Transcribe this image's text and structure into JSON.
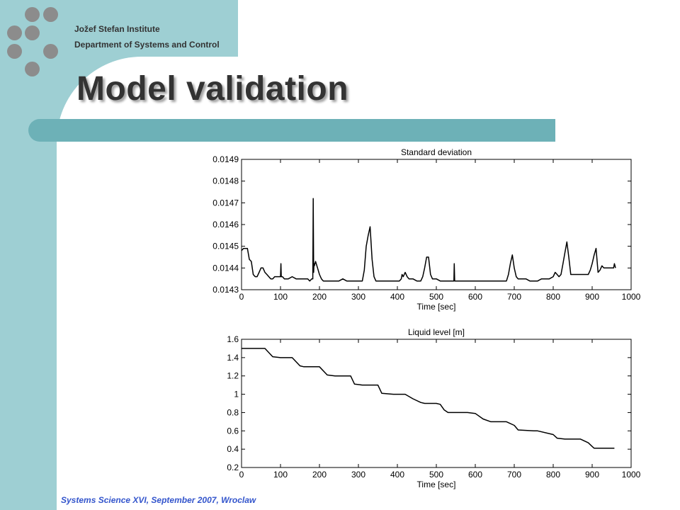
{
  "institute": {
    "name": "Jožef Stefan Institute",
    "department": "Department  of Systems and Control"
  },
  "slide": {
    "title": "Model validation",
    "footer": "Systems Science XVI, September 2007, Wroclaw"
  },
  "colors": {
    "sidebar": "#9ecfd3",
    "title_bar": "#6db1b7",
    "dots": "#8c8c8c",
    "footer_text": "#3355cc"
  },
  "chart_data": [
    {
      "type": "line",
      "title": "Standard deviation",
      "xlabel": "Time [sec]",
      "ylabel": "",
      "xlim": [
        0,
        1000
      ],
      "ylim": [
        0.0143,
        0.0149
      ],
      "xticks": [
        0,
        100,
        200,
        300,
        400,
        500,
        600,
        700,
        800,
        900,
        1000
      ],
      "yticks": [
        0.0143,
        0.0144,
        0.0145,
        0.0146,
        0.0147,
        0.0148,
        0.0149
      ],
      "ytick_labels": [
        "0.0143",
        "0.0144",
        "0.0145",
        "0.0146",
        "0.0147",
        "0.0148",
        "0.0149"
      ],
      "grid": false,
      "series": [
        {
          "x": [
            0,
            5,
            10,
            15,
            18,
            20,
            25,
            30,
            35,
            40,
            45,
            50,
            55,
            60,
            65,
            70,
            75,
            80,
            85,
            90,
            95,
            100,
            101,
            102,
            105,
            110,
            120,
            130,
            140,
            150,
            160,
            170,
            175,
            180,
            183,
            184,
            185,
            186,
            187,
            190,
            195,
            200,
            205,
            210,
            220,
            230,
            240,
            250,
            260,
            270,
            280,
            290,
            300,
            310,
            315,
            320,
            325,
            330,
            335,
            340,
            345,
            350,
            360,
            370,
            380,
            390,
            400,
            405,
            410,
            412,
            415,
            420,
            425,
            430,
            440,
            450,
            460,
            465,
            470,
            475,
            480,
            485,
            490,
            500,
            510,
            520,
            530,
            540,
            545,
            546,
            547,
            550,
            560,
            580,
            600,
            620,
            630,
            640,
            660,
            680,
            685,
            690,
            695,
            700,
            705,
            710,
            720,
            730,
            740,
            750,
            760,
            770,
            780,
            790,
            800,
            805,
            810,
            815,
            820,
            825,
            830,
            835,
            840,
            845,
            850,
            860,
            870,
            880,
            890,
            895,
            900,
            905,
            910,
            915,
            920,
            925,
            930,
            940,
            950,
            955,
            957,
            960
          ],
          "y": [
            0.01448,
            0.01449,
            0.01449,
            0.01449,
            0.01446,
            0.01444,
            0.01443,
            0.01437,
            0.01436,
            0.01436,
            0.01438,
            0.0144,
            0.0144,
            0.01438,
            0.01437,
            0.01436,
            0.01435,
            0.01435,
            0.01436,
            0.01436,
            0.01436,
            0.01436,
            0.01442,
            0.01436,
            0.01436,
            0.01435,
            0.01435,
            0.01436,
            0.01435,
            0.01435,
            0.01435,
            0.01435,
            0.01434,
            0.01435,
            0.01435,
            0.01472,
            0.01438,
            0.01442,
            0.01441,
            0.01443,
            0.0144,
            0.01437,
            0.01435,
            0.01434,
            0.01434,
            0.01434,
            0.01434,
            0.01434,
            0.01435,
            0.01434,
            0.01434,
            0.01434,
            0.01434,
            0.01434,
            0.01439,
            0.0145,
            0.01455,
            0.01459,
            0.01444,
            0.01436,
            0.01434,
            0.01434,
            0.01434,
            0.01434,
            0.01434,
            0.01434,
            0.01434,
            0.01434,
            0.01435,
            0.01437,
            0.01436,
            0.01438,
            0.01436,
            0.01435,
            0.01435,
            0.01434,
            0.01434,
            0.01436,
            0.0144,
            0.01445,
            0.01445,
            0.01437,
            0.01435,
            0.01435,
            0.01434,
            0.01434,
            0.01434,
            0.01434,
            0.01434,
            0.01442,
            0.01434,
            0.01434,
            0.01434,
            0.01434,
            0.01434,
            0.01434,
            0.01434,
            0.01434,
            0.01434,
            0.01434,
            0.01437,
            0.01442,
            0.01446,
            0.0144,
            0.01436,
            0.01435,
            0.01435,
            0.01435,
            0.01434,
            0.01434,
            0.01434,
            0.01435,
            0.01435,
            0.01435,
            0.01436,
            0.01438,
            0.01437,
            0.01436,
            0.01437,
            0.01442,
            0.01447,
            0.01452,
            0.01445,
            0.01437,
            0.01437,
            0.01437,
            0.01437,
            0.01437,
            0.01437,
            0.01439,
            0.01442,
            0.01446,
            0.01449,
            0.01438,
            0.01439,
            0.01441,
            0.0144,
            0.0144,
            0.0144,
            0.0144,
            0.01442,
            0.0144
          ]
        }
      ]
    },
    {
      "type": "line",
      "title": "Liquid level [m]",
      "xlabel": "Time [sec]",
      "ylabel": "",
      "xlim": [
        0,
        1000
      ],
      "ylim": [
        0.2,
        1.6
      ],
      "xticks": [
        0,
        100,
        200,
        300,
        400,
        500,
        600,
        700,
        800,
        900,
        1000
      ],
      "yticks": [
        0.2,
        0.4,
        0.6,
        0.8,
        1,
        1.2,
        1.4,
        1.6
      ],
      "ytick_labels": [
        "0.2",
        "0.4",
        "0.6",
        "0.8",
        "1",
        "1.2",
        "1.4",
        "1.6"
      ],
      "grid": false,
      "series": [
        {
          "x": [
            0,
            60,
            80,
            100,
            130,
            150,
            160,
            200,
            220,
            240,
            280,
            290,
            310,
            350,
            360,
            390,
            420,
            440,
            460,
            470,
            500,
            510,
            520,
            530,
            580,
            600,
            620,
            640,
            680,
            700,
            710,
            750,
            760,
            800,
            810,
            830,
            870,
            890,
            900,
            905,
            930,
            957
          ],
          "y": [
            1.5,
            1.5,
            1.41,
            1.4,
            1.4,
            1.31,
            1.3,
            1.3,
            1.21,
            1.2,
            1.2,
            1.11,
            1.1,
            1.1,
            1.01,
            1.0,
            1.0,
            0.95,
            0.91,
            0.9,
            0.9,
            0.89,
            0.83,
            0.8,
            0.8,
            0.79,
            0.73,
            0.7,
            0.7,
            0.66,
            0.61,
            0.6,
            0.6,
            0.56,
            0.52,
            0.51,
            0.51,
            0.47,
            0.43,
            0.41,
            0.41,
            0.41
          ]
        }
      ]
    }
  ]
}
